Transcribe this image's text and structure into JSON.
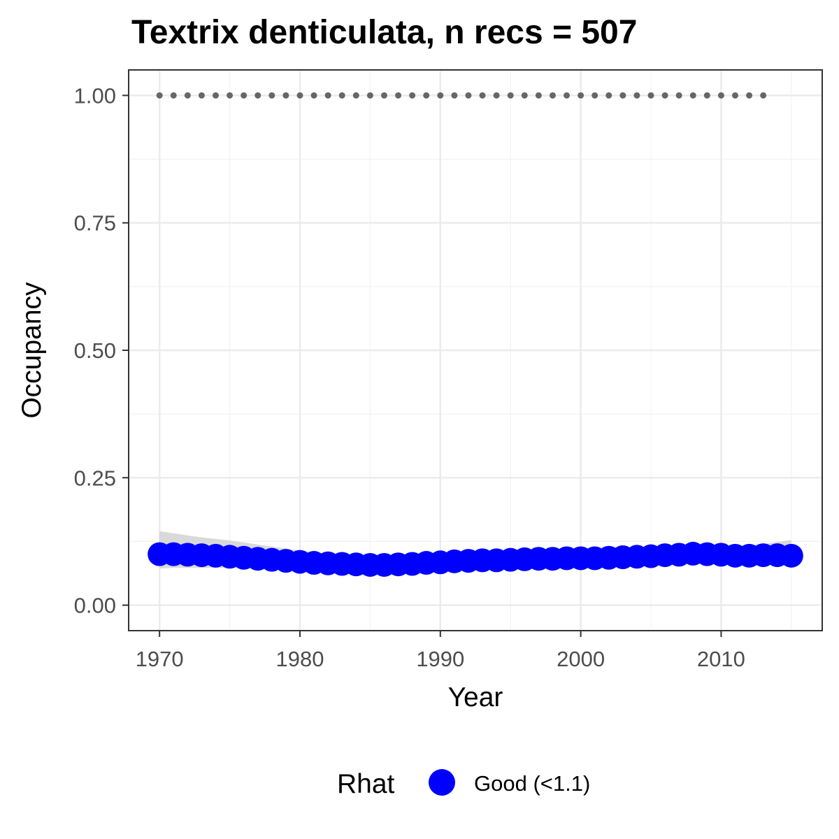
{
  "chart_data": {
    "type": "scatter",
    "title": "Textrix denticulata, n recs = 507",
    "xlabel": "Year",
    "ylabel": "Occupancy",
    "xlim": [
      1967.8,
      2017.2
    ],
    "ylim": [
      -0.05,
      1.05
    ],
    "x_ticks": [
      1970,
      1980,
      1990,
      2000,
      2010
    ],
    "x_tick_labels": [
      "1970",
      "1980",
      "1990",
      "2000",
      "2010"
    ],
    "y_ticks": [
      0,
      0.25,
      0.5,
      0.75,
      1
    ],
    "y_tick_labels": [
      "0.00",
      "0.25",
      "0.50",
      "0.75",
      "1.00"
    ],
    "grid": true,
    "series": [
      {
        "name": "Good (<1.1)",
        "color": "#0000ff",
        "x": [
          1970,
          1971,
          1972,
          1973,
          1974,
          1975,
          1976,
          1977,
          1978,
          1979,
          1980,
          1981,
          1982,
          1983,
          1984,
          1985,
          1986,
          1987,
          1988,
          1989,
          1990,
          1991,
          1992,
          1993,
          1994,
          1995,
          1996,
          1997,
          1998,
          1999,
          2000,
          2001,
          2002,
          2003,
          2004,
          2005,
          2006,
          2007,
          2008,
          2009,
          2010,
          2011,
          2012,
          2013,
          2014,
          2015
        ],
        "y": [
          0.1,
          0.1,
          0.099,
          0.098,
          0.097,
          0.095,
          0.093,
          0.091,
          0.089,
          0.087,
          0.085,
          0.083,
          0.082,
          0.081,
          0.08,
          0.079,
          0.079,
          0.08,
          0.081,
          0.083,
          0.084,
          0.086,
          0.087,
          0.088,
          0.088,
          0.089,
          0.09,
          0.091,
          0.091,
          0.092,
          0.092,
          0.092,
          0.093,
          0.094,
          0.095,
          0.096,
          0.098,
          0.099,
          0.101,
          0.1,
          0.099,
          0.097,
          0.097,
          0.098,
          0.098,
          0.097
        ],
        "ci_lower": [
          0.072,
          0.073,
          0.073,
          0.073,
          0.073,
          0.073,
          0.072,
          0.072,
          0.071,
          0.071,
          0.07,
          0.07,
          0.069,
          0.069,
          0.068,
          0.068,
          0.068,
          0.068,
          0.069,
          0.07,
          0.071,
          0.072,
          0.073,
          0.074,
          0.075,
          0.075,
          0.076,
          0.077,
          0.077,
          0.078,
          0.078,
          0.078,
          0.079,
          0.079,
          0.08,
          0.08,
          0.081,
          0.081,
          0.082,
          0.082,
          0.081,
          0.08,
          0.08,
          0.08,
          0.08,
          0.079
        ],
        "ci_upper": [
          0.145,
          0.141,
          0.137,
          0.133,
          0.13,
          0.127,
          0.123,
          0.119,
          0.115,
          0.111,
          0.107,
          0.104,
          0.101,
          0.099,
          0.097,
          0.096,
          0.095,
          0.095,
          0.096,
          0.097,
          0.098,
          0.099,
          0.1,
          0.101,
          0.101,
          0.102,
          0.103,
          0.104,
          0.104,
          0.105,
          0.105,
          0.105,
          0.106,
          0.107,
          0.108,
          0.109,
          0.111,
          0.112,
          0.114,
          0.114,
          0.115,
          0.116,
          0.118,
          0.12,
          0.124,
          0.128
        ]
      },
      {
        "name": "",
        "style": "dotted",
        "color": "#666666",
        "x": [
          1970,
          1971,
          1972,
          1973,
          1974,
          1975,
          1976,
          1977,
          1978,
          1979,
          1980,
          1981,
          1982,
          1983,
          1984,
          1985,
          1986,
          1987,
          1988,
          1989,
          1990,
          1991,
          1992,
          1993,
          1994,
          1995,
          1996,
          1997,
          1998,
          1999,
          2000,
          2001,
          2002,
          2003,
          2004,
          2005,
          2006,
          2007,
          2008,
          2009,
          2010,
          2011,
          2012,
          2013
        ],
        "y": [
          1,
          1,
          1,
          1,
          1,
          1,
          1,
          1,
          1,
          1,
          1,
          1,
          1,
          1,
          1,
          1,
          1,
          1,
          1,
          1,
          1,
          1,
          1,
          1,
          1,
          1,
          1,
          1,
          1,
          1,
          1,
          1,
          1,
          1,
          1,
          1,
          1,
          1,
          1,
          1,
          1,
          1,
          1,
          1
        ]
      }
    ],
    "legend": {
      "title": "Rhat",
      "position": "bottom",
      "entries": [
        {
          "label": "Good (<1.1)",
          "color": "#0000ff"
        }
      ]
    }
  }
}
